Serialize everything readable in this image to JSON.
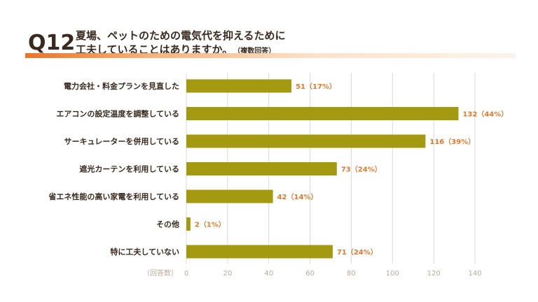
{
  "question": {
    "number": "Q12",
    "title_line1": "夏場、ペットのための電気代を抑えるために",
    "title_line2": "工夫していることはありますか。",
    "note": "（複数回答）"
  },
  "chart_data": {
    "type": "bar",
    "orientation": "horizontal",
    "categories": [
      "電力会社・料金プランを見直した",
      "エアコンの設定温度を調整している",
      "サーキュレーターを併用している",
      "遮光カーテンを利用している",
      "省エネ性能の高い家電を利用している",
      "その他",
      "特に工夫していない"
    ],
    "values": [
      51,
      132,
      116,
      73,
      42,
      2,
      71
    ],
    "value_labels": [
      "51（17%）",
      "132（44%）",
      "116（39%）",
      "73（24%）",
      "42（14%）",
      "2（1%）",
      "71（24%）"
    ],
    "xlim": [
      0,
      140
    ],
    "xticks": [
      "0",
      "20",
      "40",
      "60",
      "80",
      "100",
      "120",
      "140"
    ],
    "xlabel": "（回答数）",
    "grid": true,
    "bar_color": "#a49a12",
    "grid_color": "#d9d9d9",
    "label_color": "#e07a2c"
  }
}
